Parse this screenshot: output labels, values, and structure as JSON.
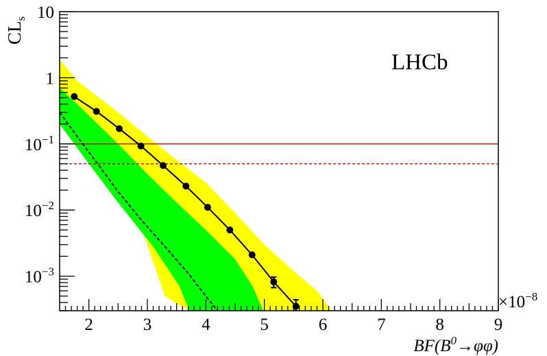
{
  "chart_data": {
    "type": "line",
    "experiment_label": "LHCb",
    "ylabel": {
      "main": "CL",
      "sub": "s"
    },
    "xlabel": {
      "prefix": "BF(B",
      "sup": "0",
      "arrow": "→",
      "suffix": "φφ)"
    },
    "x_multiplier": {
      "base": "×10",
      "exp": "−8"
    },
    "xlim": [
      1.5,
      9.0
    ],
    "ylim": [
      0.0003,
      10
    ],
    "y_log": true,
    "grid": false,
    "x_ticks": [
      {
        "value": 2,
        "label": "2"
      },
      {
        "value": 3,
        "label": "3"
      },
      {
        "value": 4,
        "label": "4"
      },
      {
        "value": 5,
        "label": "5"
      },
      {
        "value": 6,
        "label": "6"
      },
      {
        "value": 7,
        "label": "7"
      },
      {
        "value": 8,
        "label": "8"
      },
      {
        "value": 9,
        "label": "9"
      }
    ],
    "y_ticks": [
      {
        "value": 10,
        "base": "10",
        "exp": ""
      },
      {
        "value": 1,
        "base": "1",
        "exp": ""
      },
      {
        "value": 0.1,
        "base": "10",
        "exp": "−1"
      },
      {
        "value": 0.01,
        "base": "10",
        "exp": "−2"
      },
      {
        "value": 0.001,
        "base": "10",
        "exp": "−3"
      }
    ],
    "observed": {
      "x": [
        1.75,
        2.13,
        2.52,
        2.89,
        3.27,
        3.66,
        4.03,
        4.41,
        4.79,
        5.16,
        5.54
      ],
      "y": [
        0.52,
        0.31,
        0.17,
        0.093,
        0.047,
        0.023,
        0.011,
        0.005,
        0.0021,
        0.00082,
        0.00035
      ],
      "y_err": [
        0,
        0,
        0,
        0,
        0,
        0,
        0,
        0,
        0,
        0.00015,
        9e-05
      ],
      "color": "#000000"
    },
    "expected": {
      "x": [
        1.5,
        1.8,
        2.15,
        2.5,
        2.9,
        3.3,
        3.7,
        4.0,
        4.2
      ],
      "y": [
        0.3,
        0.13,
        0.05,
        0.019,
        0.007,
        0.0028,
        0.0011,
        0.0005,
        0.0003
      ],
      "color": "#000000"
    },
    "band_2sigma": {
      "color": "#ffff00",
      "x": [
        1.5,
        1.8,
        2.5,
        3.0,
        3.5,
        4.0,
        4.5,
        5.0,
        5.5,
        5.9,
        6.15,
        6.15,
        3.75,
        3.55,
        3.3,
        2.95,
        2.5,
        2.0,
        1.5
      ],
      "y": [
        1.9,
        0.9,
        0.3,
        0.13,
        0.057,
        0.026,
        0.009,
        0.003,
        0.0012,
        0.0006,
        0.0003,
        0.0003,
        0.0003,
        0.00036,
        0.0005,
        0.004,
        0.016,
        0.06,
        0.32
      ]
    },
    "band_1sigma": {
      "color": "#00ff00",
      "x": [
        1.5,
        1.8,
        2.5,
        3.0,
        3.5,
        4.0,
        4.5,
        4.8,
        4.98,
        4.98,
        3.72,
        3.55,
        3.1,
        2.5,
        2.0,
        1.5
      ],
      "y": [
        0.7,
        0.4,
        0.1,
        0.035,
        0.013,
        0.005,
        0.0018,
        0.0007,
        0.0003,
        0.0003,
        0.0003,
        0.0007,
        0.0028,
        0.013,
        0.05,
        0.2
      ]
    },
    "reference_lines": [
      {
        "y": 0.1,
        "style": "solid",
        "color": "#cc0000"
      },
      {
        "y": 0.05,
        "style": "dashed",
        "color": "#cc0000"
      }
    ]
  }
}
